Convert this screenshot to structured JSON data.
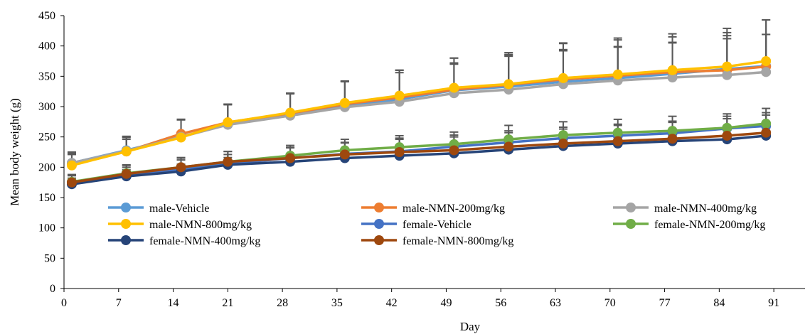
{
  "chart_data": {
    "type": "line",
    "title": "",
    "xlabel": "Day",
    "ylabel": "Mean body weight (g)",
    "xlim": [
      0,
      95
    ],
    "ylim": [
      0,
      450
    ],
    "xticks": [
      0,
      7,
      14,
      21,
      28,
      35,
      42,
      49,
      56,
      63,
      70,
      77,
      84,
      91
    ],
    "yticks": [
      0,
      50,
      100,
      150,
      200,
      250,
      300,
      350,
      400,
      450
    ],
    "x": [
      1,
      8,
      15,
      21,
      29,
      36,
      43,
      50,
      57,
      64,
      71,
      78,
      85,
      90
    ],
    "grid": false,
    "legend_position": "inside-lower-center",
    "series": [
      {
        "name": "male-Vehicle",
        "color": "#5B9BD5",
        "values": [
          207,
          228,
          250,
          271,
          287,
          302,
          312,
          327,
          333,
          341,
          347,
          354,
          362,
          367
        ],
        "error": [
          18,
          23,
          28,
          33,
          35,
          40,
          48,
          45,
          52,
          53,
          52,
          52,
          55,
          52
        ]
      },
      {
        "name": "male-NMN-200mg/kg",
        "color": "#ED7D31",
        "values": [
          205,
          226,
          255,
          274,
          289,
          304,
          315,
          328,
          336,
          345,
          351,
          357,
          360,
          366
        ],
        "error": [
          17,
          24,
          24,
          30,
          32,
          38,
          45,
          52,
          50,
          60,
          62,
          58,
          62,
          77
        ]
      },
      {
        "name": "male-NMN-400mg/kg",
        "color": "#A5A5A5",
        "values": [
          207,
          227,
          250,
          270,
          285,
          299,
          308,
          322,
          328,
          337,
          343,
          348,
          352,
          357
        ],
        "error": [
          17,
          22,
          29,
          33,
          37,
          42,
          48,
          48,
          55,
          55,
          55,
          57,
          60,
          62
        ]
      },
      {
        "name": "male-NMN-800mg/kg",
        "color": "#FFC000",
        "values": [
          203,
          226,
          249,
          274,
          290,
          306,
          318,
          331,
          337,
          347,
          353,
          360,
          366,
          375
        ],
        "error": [
          18,
          20,
          30,
          30,
          32,
          36,
          42,
          49,
          52,
          57,
          57,
          60,
          63,
          68
        ]
      },
      {
        "name": "female-Vehicle",
        "color": "#4472C4",
        "values": [
          174,
          187,
          197,
          206,
          215,
          222,
          226,
          234,
          241,
          248,
          252,
          256,
          264,
          268
        ],
        "error": [
          12,
          13,
          15,
          15,
          17,
          19,
          22,
          19,
          19,
          18,
          19,
          20,
          20,
          22
        ]
      },
      {
        "name": "female-NMN-200mg/kg",
        "color": "#70AD47",
        "values": [
          176,
          190,
          200,
          209,
          219,
          228,
          233,
          238,
          246,
          253,
          257,
          260,
          265,
          272
        ],
        "error": [
          12,
          14,
          15,
          17,
          17,
          18,
          19,
          20,
          23,
          22,
          22,
          24,
          23,
          25
        ]
      },
      {
        "name": "female-NMN-400mg/kg",
        "color": "#264478",
        "values": [
          172,
          185,
          193,
          204,
          209,
          215,
          219,
          223,
          229,
          235,
          239,
          243,
          246,
          252
        ],
        "error": [
          10,
          11,
          12,
          12,
          13,
          14,
          16,
          18,
          18,
          18,
          19,
          19,
          20,
          21
        ]
      },
      {
        "name": "female-NMN-800mg/kg",
        "color": "#9E480E",
        "values": [
          175,
          189,
          200,
          209,
          215,
          221,
          225,
          228,
          234,
          239,
          243,
          247,
          252,
          257
        ],
        "error": [
          12,
          14,
          16,
          17,
          18,
          19,
          21,
          22,
          23,
          24,
          26,
          27,
          28,
          29
        ]
      }
    ]
  }
}
